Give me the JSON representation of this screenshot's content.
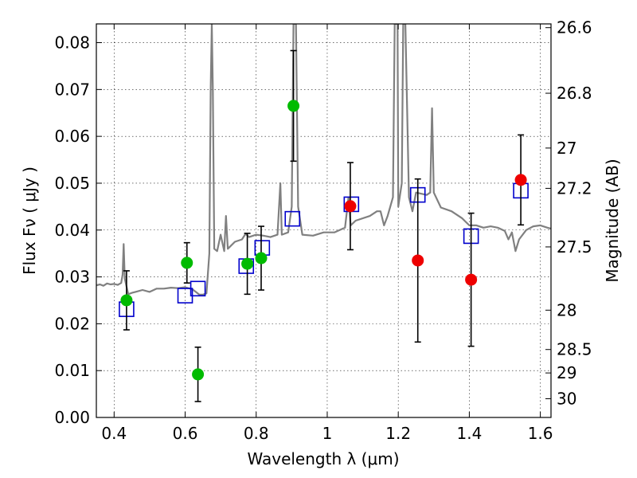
{
  "chart_data": {
    "type": "scatter",
    "title": "",
    "xlabel": "Wavelength  λ (μm)",
    "ylabel_left": "Flux  Fν  ( μJy )",
    "ylabel_right": "Magnitude (AB)",
    "xlim": [
      0.35,
      1.63
    ],
    "ylim": [
      0.0,
      0.084
    ],
    "grid": true,
    "xticks": [
      {
        "value": 0.4,
        "label": "0.4"
      },
      {
        "value": 0.6,
        "label": "0.6"
      },
      {
        "value": 0.8,
        "label": "0.8"
      },
      {
        "value": 1.0,
        "label": "1"
      },
      {
        "value": 1.2,
        "label": "1.2"
      },
      {
        "value": 1.4,
        "label": "1.4"
      },
      {
        "value": 1.6,
        "label": "1.6"
      }
    ],
    "yticks": [
      {
        "value": 0.0,
        "label": "0.00"
      },
      {
        "value": 0.01,
        "label": "0.01"
      },
      {
        "value": 0.02,
        "label": "0.02"
      },
      {
        "value": 0.03,
        "label": "0.03"
      },
      {
        "value": 0.04,
        "label": "0.04"
      },
      {
        "value": 0.05,
        "label": "0.05"
      },
      {
        "value": 0.06,
        "label": "0.06"
      },
      {
        "value": 0.07,
        "label": "0.07"
      },
      {
        "value": 0.08,
        "label": "0.08"
      }
    ],
    "right_ticks": [
      {
        "flux": 0.0832,
        "label": "26.6"
      },
      {
        "flux": 0.0692,
        "label": "26.8"
      },
      {
        "flux": 0.0575,
        "label": "27"
      },
      {
        "flux": 0.0489,
        "label": "27.2"
      },
      {
        "flux": 0.0364,
        "label": "27.5"
      },
      {
        "flux": 0.0229,
        "label": "28"
      },
      {
        "flux": 0.0145,
        "label": "28.5"
      },
      {
        "flux": 0.0095,
        "label": "29"
      },
      {
        "flux": 0.004,
        "label": "30"
      }
    ],
    "colors": {
      "green": "#00bb00",
      "red": "#ee0000",
      "model_box": "#0000cc",
      "spectrum": "#808080",
      "errorbar": "#000000"
    },
    "series": [
      {
        "marker": "circle-green",
        "points": [
          {
            "x": 0.435,
            "y": 0.025,
            "err": 0.0063
          },
          {
            "x": 0.605,
            "y": 0.033,
            "err": 0.0043
          },
          {
            "x": 0.636,
            "y": 0.0092,
            "err": 0.0058
          },
          {
            "x": 0.775,
            "y": 0.0328,
            "err": 0.0065
          },
          {
            "x": 0.814,
            "y": 0.034,
            "err": 0.0068
          },
          {
            "x": 0.905,
            "y": 0.0665,
            "err": 0.0118
          }
        ]
      },
      {
        "marker": "circle-red",
        "points": [
          {
            "x": 1.065,
            "y": 0.0451,
            "err": 0.0093
          },
          {
            "x": 1.255,
            "y": 0.0335,
            "err": 0.0174
          },
          {
            "x": 1.405,
            "y": 0.0294,
            "err": 0.0142
          },
          {
            "x": 1.545,
            "y": 0.0507,
            "err": 0.0096
          }
        ]
      },
      {
        "marker": "open-square-blue",
        "points": [
          {
            "x": 0.435,
            "y": 0.0231
          },
          {
            "x": 0.6,
            "y": 0.026
          },
          {
            "x": 0.636,
            "y": 0.0275
          },
          {
            "x": 0.772,
            "y": 0.0323
          },
          {
            "x": 0.817,
            "y": 0.0362
          },
          {
            "x": 0.902,
            "y": 0.0424
          },
          {
            "x": 1.068,
            "y": 0.0455
          },
          {
            "x": 1.255,
            "y": 0.0475
          },
          {
            "x": 1.405,
            "y": 0.0387
          },
          {
            "x": 1.545,
            "y": 0.0484
          }
        ]
      }
    ],
    "model_spectrum": [
      [
        0.35,
        0.0282
      ],
      [
        0.36,
        0.0284
      ],
      [
        0.37,
        0.0281
      ],
      [
        0.38,
        0.0286
      ],
      [
        0.39,
        0.0284
      ],
      [
        0.4,
        0.0285
      ],
      [
        0.41,
        0.0283
      ],
      [
        0.42,
        0.0287
      ],
      [
        0.424,
        0.0305
      ],
      [
        0.427,
        0.037
      ],
      [
        0.43,
        0.0296
      ],
      [
        0.44,
        0.0263
      ],
      [
        0.45,
        0.0266
      ],
      [
        0.46,
        0.0268
      ],
      [
        0.48,
        0.0272
      ],
      [
        0.5,
        0.0268
      ],
      [
        0.52,
        0.0275
      ],
      [
        0.54,
        0.0275
      ],
      [
        0.56,
        0.0277
      ],
      [
        0.58,
        0.0276
      ],
      [
        0.6,
        0.0278
      ],
      [
        0.62,
        0.0274
      ],
      [
        0.64,
        0.0262
      ],
      [
        0.65,
        0.0262
      ],
      [
        0.66,
        0.0265
      ],
      [
        0.668,
        0.035
      ],
      [
        0.672,
        0.07
      ],
      [
        0.675,
        0.084
      ],
      [
        0.678,
        0.07
      ],
      [
        0.682,
        0.036
      ],
      [
        0.69,
        0.0355
      ],
      [
        0.7,
        0.039
      ],
      [
        0.71,
        0.0355
      ],
      [
        0.715,
        0.043
      ],
      [
        0.72,
        0.036
      ],
      [
        0.74,
        0.0375
      ],
      [
        0.76,
        0.038
      ],
      [
        0.77,
        0.0392
      ],
      [
        0.78,
        0.0385
      ],
      [
        0.8,
        0.039
      ],
      [
        0.82,
        0.0388
      ],
      [
        0.84,
        0.0385
      ],
      [
        0.86,
        0.039
      ],
      [
        0.868,
        0.05
      ],
      [
        0.872,
        0.039
      ],
      [
        0.89,
        0.0395
      ],
      [
        0.9,
        0.045
      ],
      [
        0.905,
        0.084
      ],
      [
        0.912,
        0.084
      ],
      [
        0.918,
        0.045
      ],
      [
        0.93,
        0.039
      ],
      [
        0.96,
        0.0388
      ],
      [
        0.99,
        0.0395
      ],
      [
        1.02,
        0.0395
      ],
      [
        1.05,
        0.0405
      ],
      [
        1.06,
        0.047
      ],
      [
        1.066,
        0.041
      ],
      [
        1.08,
        0.042
      ],
      [
        1.12,
        0.043
      ],
      [
        1.14,
        0.044
      ],
      [
        1.15,
        0.044
      ],
      [
        1.16,
        0.041
      ],
      [
        1.17,
        0.043
      ],
      [
        1.185,
        0.047
      ],
      [
        1.19,
        0.084
      ],
      [
        1.198,
        0.084
      ],
      [
        1.2,
        0.045
      ],
      [
        1.21,
        0.05
      ],
      [
        1.214,
        0.084
      ],
      [
        1.22,
        0.084
      ],
      [
        1.23,
        0.047
      ],
      [
        1.24,
        0.044
      ],
      [
        1.25,
        0.048
      ],
      [
        1.28,
        0.0475
      ],
      [
        1.29,
        0.048
      ],
      [
        1.295,
        0.066
      ],
      [
        1.3,
        0.048
      ],
      [
        1.32,
        0.0448
      ],
      [
        1.35,
        0.044
      ],
      [
        1.38,
        0.0425
      ],
      [
        1.4,
        0.041
      ],
      [
        1.42,
        0.041
      ],
      [
        1.44,
        0.0405
      ],
      [
        1.46,
        0.0408
      ],
      [
        1.48,
        0.0405
      ],
      [
        1.5,
        0.0398
      ],
      [
        1.51,
        0.038
      ],
      [
        1.52,
        0.0395
      ],
      [
        1.53,
        0.0355
      ],
      [
        1.54,
        0.038
      ],
      [
        1.56,
        0.04
      ],
      [
        1.58,
        0.0408
      ],
      [
        1.6,
        0.041
      ],
      [
        1.62,
        0.0405
      ],
      [
        1.63,
        0.0403
      ]
    ]
  }
}
